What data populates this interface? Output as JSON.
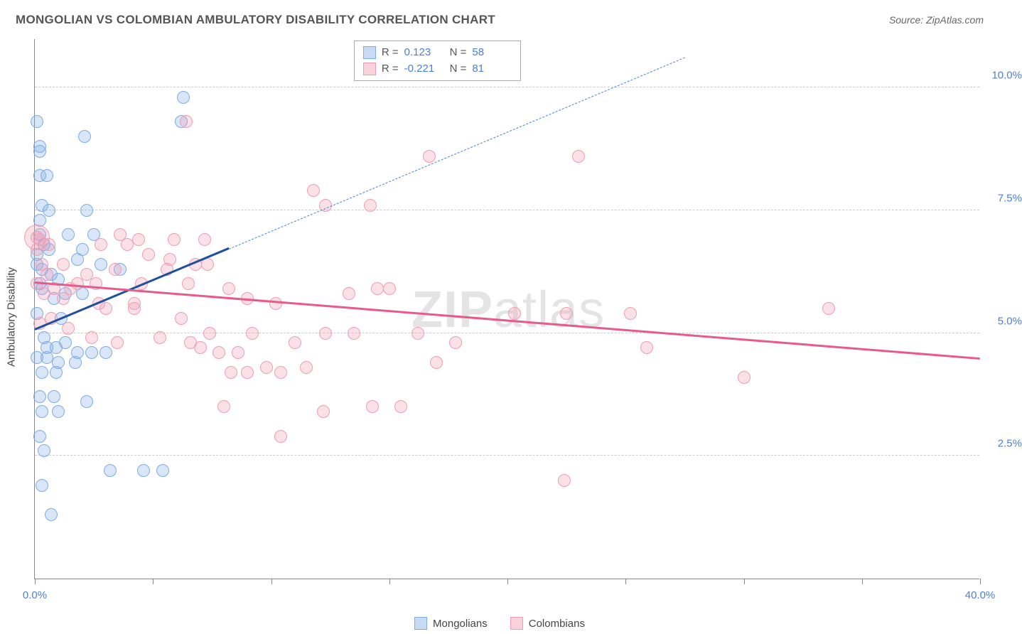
{
  "title": "MONGOLIAN VS COLOMBIAN AMBULATORY DISABILITY CORRELATION CHART",
  "source": "Source: ZipAtlas.com",
  "yaxis_label": "Ambulatory Disability",
  "watermark": {
    "left": "ZIP",
    "right": "atlas"
  },
  "chart": {
    "type": "scatter",
    "xlim": [
      0,
      40
    ],
    "ylim": [
      0,
      11
    ],
    "xtick_positions": [
      0,
      5,
      10,
      15,
      20,
      25,
      30,
      35,
      40
    ],
    "xtick_labels_shown": {
      "0": "0.0%",
      "40": "40.0%"
    },
    "ytick_positions": [
      2.5,
      5.0,
      7.5,
      10.0
    ],
    "ytick_labels": [
      "2.5%",
      "5.0%",
      "7.5%",
      "10.0%"
    ],
    "grid_color": "#cccccc",
    "background_color": "#ffffff",
    "axis_color": "#888888",
    "marker_radius": 9,
    "marker_stroke_width": 1.5,
    "series": [
      {
        "name": "Mongolians",
        "fill_color": "rgba(127,171,231,0.30)",
        "stroke_color": "#7fabe7",
        "legend_fill": "#c7dbf4",
        "legend_stroke": "#7fabe7",
        "r_value": "0.123",
        "n_value": "58",
        "trend": {
          "solid": {
            "x1": 0,
            "y1": 5.05,
            "x2": 8.2,
            "y2": 6.7,
            "color": "#1f4fa0",
            "width": 3
          },
          "dashed": {
            "x1": 8.2,
            "y1": 6.7,
            "x2": 27.5,
            "y2": 10.6,
            "color": "#4a80d6",
            "width": 1.5,
            "dash": "7,6"
          }
        },
        "points": [
          [
            0.1,
            9.3
          ],
          [
            0.2,
            8.8
          ],
          [
            0.2,
            8.7
          ],
          [
            2.1,
            9.0
          ],
          [
            6.3,
            9.8
          ],
          [
            6.2,
            9.3
          ],
          [
            0.3,
            7.6
          ],
          [
            0.6,
            7.5
          ],
          [
            0.2,
            7.3
          ],
          [
            2.2,
            7.5
          ],
          [
            0.3,
            6.3
          ],
          [
            0.7,
            6.2
          ],
          [
            1.0,
            6.1
          ],
          [
            1.8,
            6.5
          ],
          [
            2.0,
            6.7
          ],
          [
            2.8,
            6.4
          ],
          [
            3.6,
            6.3
          ],
          [
            0.2,
            6.0
          ],
          [
            0.3,
            5.9
          ],
          [
            0.8,
            5.7
          ],
          [
            1.3,
            5.8
          ],
          [
            2.0,
            5.8
          ],
          [
            0.4,
            4.9
          ],
          [
            0.5,
            4.7
          ],
          [
            0.9,
            4.7
          ],
          [
            1.3,
            4.8
          ],
          [
            1.8,
            4.6
          ],
          [
            2.4,
            4.6
          ],
          [
            3.0,
            4.6
          ],
          [
            0.3,
            4.2
          ],
          [
            0.9,
            4.2
          ],
          [
            0.2,
            3.7
          ],
          [
            0.8,
            3.7
          ],
          [
            2.2,
            3.6
          ],
          [
            0.4,
            2.6
          ],
          [
            0.3,
            1.9
          ],
          [
            3.2,
            2.2
          ],
          [
            4.6,
            2.2
          ],
          [
            5.4,
            2.2
          ],
          [
            0.7,
            1.3
          ],
          [
            0.2,
            7.0
          ],
          [
            0.4,
            6.8
          ],
          [
            1.4,
            7.0
          ],
          [
            2.5,
            7.0
          ],
          [
            0.1,
            5.4
          ],
          [
            1.1,
            5.3
          ],
          [
            0.1,
            6.6
          ],
          [
            0.6,
            6.7
          ],
          [
            0.1,
            4.5
          ],
          [
            0.5,
            4.5
          ],
          [
            1.0,
            4.4
          ],
          [
            1.7,
            4.4
          ],
          [
            0.3,
            3.4
          ],
          [
            1.0,
            3.4
          ],
          [
            0.2,
            2.9
          ],
          [
            0.2,
            8.2
          ],
          [
            0.5,
            8.2
          ],
          [
            0.1,
            6.4
          ]
        ]
      },
      {
        "name": "Colombians",
        "fill_color": "rgba(239,156,178,0.30)",
        "stroke_color": "#ef9cb2",
        "legend_fill": "#f7d1db",
        "legend_stroke": "#ef9cb2",
        "r_value": "-0.221",
        "n_value": "81",
        "trend": {
          "solid": {
            "x1": 0,
            "y1": 6.0,
            "x2": 40,
            "y2": 4.45,
            "color": "#e85a8a",
            "width": 3
          }
        },
        "points": [
          [
            0.2,
            6.9
          ],
          [
            0.6,
            6.8
          ],
          [
            6.4,
            9.3
          ],
          [
            16.7,
            8.6
          ],
          [
            23.0,
            8.6
          ],
          [
            0.3,
            6.4
          ],
          [
            1.2,
            6.4
          ],
          [
            2.2,
            6.2
          ],
          [
            3.6,
            7.0
          ],
          [
            4.4,
            6.9
          ],
          [
            5.9,
            6.9
          ],
          [
            7.2,
            6.9
          ],
          [
            7.3,
            6.4
          ],
          [
            0.5,
            6.2
          ],
          [
            1.8,
            6.0
          ],
          [
            3.4,
            6.3
          ],
          [
            4.5,
            6.0
          ],
          [
            5.6,
            6.3
          ],
          [
            6.8,
            6.4
          ],
          [
            8.2,
            5.9
          ],
          [
            0.4,
            5.8
          ],
          [
            1.2,
            5.7
          ],
          [
            2.7,
            5.6
          ],
          [
            4.2,
            5.6
          ],
          [
            9.0,
            5.7
          ],
          [
            10.2,
            5.6
          ],
          [
            11.8,
            7.9
          ],
          [
            12.3,
            7.6
          ],
          [
            14.2,
            7.6
          ],
          [
            15.0,
            5.9
          ],
          [
            7.4,
            5.0
          ],
          [
            7.8,
            4.6
          ],
          [
            8.6,
            4.6
          ],
          [
            9.2,
            5.0
          ],
          [
            9.8,
            4.3
          ],
          [
            11.0,
            4.8
          ],
          [
            12.3,
            5.0
          ],
          [
            13.5,
            5.0
          ],
          [
            13.3,
            5.8
          ],
          [
            14.5,
            5.9
          ],
          [
            16.2,
            5.0
          ],
          [
            17.0,
            4.4
          ],
          [
            17.8,
            4.8
          ],
          [
            20.3,
            5.4
          ],
          [
            22.5,
            5.4
          ],
          [
            25.2,
            5.4
          ],
          [
            8.0,
            3.5
          ],
          [
            8.3,
            4.2
          ],
          [
            9.0,
            4.2
          ],
          [
            10.4,
            4.2
          ],
          [
            11.5,
            4.3
          ],
          [
            12.2,
            3.4
          ],
          [
            14.3,
            3.5
          ],
          [
            15.5,
            3.5
          ],
          [
            10.4,
            2.9
          ],
          [
            25.9,
            4.7
          ],
          [
            30.0,
            4.1
          ],
          [
            33.6,
            5.5
          ],
          [
            22.4,
            2.0
          ],
          [
            0.1,
            6.7
          ],
          [
            0.1,
            6.0
          ],
          [
            0.8,
            5.9
          ],
          [
            1.5,
            5.9
          ],
          [
            2.6,
            6.0
          ],
          [
            3.0,
            5.5
          ],
          [
            4.2,
            5.5
          ],
          [
            4.8,
            6.6
          ],
          [
            5.7,
            6.5
          ],
          [
            6.5,
            6.0
          ],
          [
            6.2,
            5.3
          ],
          [
            6.6,
            4.8
          ],
          [
            7.0,
            4.7
          ],
          [
            3.5,
            4.8
          ],
          [
            2.4,
            4.9
          ],
          [
            1.4,
            5.1
          ],
          [
            0.7,
            5.3
          ],
          [
            0.2,
            5.2
          ],
          [
            5.3,
            4.9
          ],
          [
            3.9,
            6.8
          ],
          [
            2.8,
            6.8
          ],
          [
            0.1,
            6.95
          ]
        ],
        "large_points": [
          {
            "x": 0.1,
            "y": 6.95,
            "r": 18
          }
        ]
      }
    ]
  },
  "legend_bottom": {
    "series1_label": "Mongolians",
    "series2_label": "Colombians"
  }
}
